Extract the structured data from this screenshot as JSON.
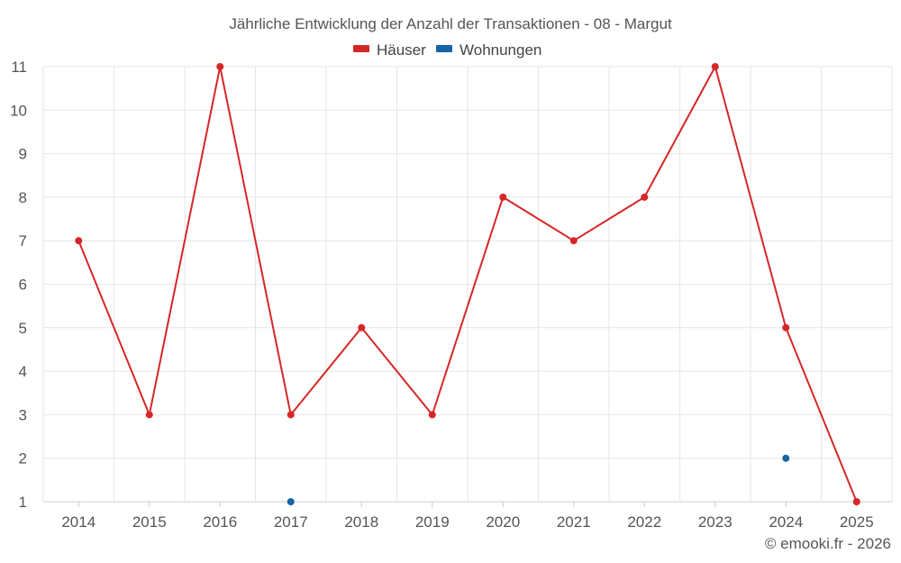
{
  "chart_data": {
    "type": "line",
    "title": "Jährliche Entwicklung der Anzahl der Transaktionen - 08 - Margut",
    "xlabel": "",
    "ylabel": "",
    "categories": [
      "2014",
      "2015",
      "2016",
      "2017",
      "2018",
      "2019",
      "2020",
      "2021",
      "2022",
      "2023",
      "2024",
      "2025"
    ],
    "yticks": [
      1,
      2,
      3,
      4,
      5,
      6,
      7,
      8,
      9,
      10,
      11
    ],
    "ylim": [
      1,
      11
    ],
    "grid": true,
    "legend_position": "top-center",
    "series": [
      {
        "name": "Häuser",
        "color": "#d62728",
        "values": [
          7,
          3,
          11,
          3,
          5,
          3,
          8,
          7,
          8,
          11,
          5,
          1
        ],
        "line": true
      },
      {
        "name": "Wohnungen",
        "color": "#1565a7",
        "values": [
          null,
          null,
          null,
          1,
          null,
          null,
          null,
          null,
          null,
          null,
          2,
          null
        ],
        "line": false
      }
    ]
  },
  "credit": "© emooki.fr - 2026"
}
